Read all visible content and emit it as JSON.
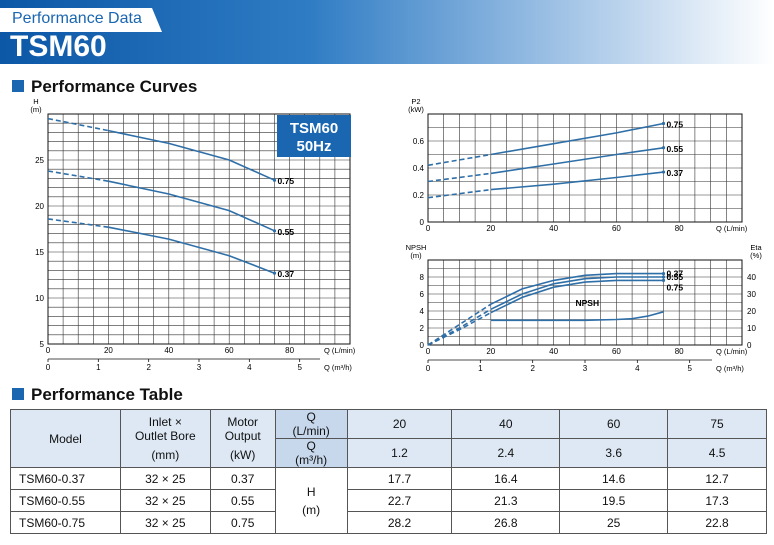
{
  "header": {
    "subtitle": "Performance Data",
    "title": "TSM60"
  },
  "section_curves": "Performance Curves",
  "section_table": "Performance Table",
  "badge": {
    "line1": "TSM60",
    "line2": "50Hz"
  },
  "colors": {
    "accent": "#1a66b0",
    "curve": "#2f6fa8",
    "table_header": "#dde8f4"
  },
  "chart_data": [
    {
      "type": "line",
      "ylabel": "H",
      "yunit": "(m)",
      "xlabel": "Q (L/min)",
      "xlabel2": "Q (m³/h)",
      "xlim": [
        0,
        100
      ],
      "ylim": [
        5,
        30
      ],
      "x_ticks": [
        0,
        20,
        40,
        60,
        80
      ],
      "x2_ticks": [
        0,
        1,
        2,
        3,
        4,
        5
      ],
      "y_ticks": [
        5,
        10,
        15,
        20,
        25
      ],
      "grid": true,
      "series": [
        {
          "name": "0.75",
          "x": [
            0,
            20,
            40,
            60,
            75
          ],
          "values": [
            29.5,
            28.2,
            26.8,
            25,
            22.8
          ]
        },
        {
          "name": "0.55",
          "x": [
            0,
            20,
            40,
            60,
            75
          ],
          "values": [
            23.8,
            22.7,
            21.3,
            19.5,
            17.3
          ]
        },
        {
          "name": "0.37",
          "x": [
            0,
            20,
            40,
            60,
            75
          ],
          "values": [
            18.6,
            17.7,
            16.4,
            14.6,
            12.7
          ]
        }
      ]
    },
    {
      "type": "line",
      "ylabel": "P2",
      "yunit": "(kW)",
      "xlabel": "Q (L/min)",
      "xlim": [
        0,
        100
      ],
      "ylim": [
        0,
        0.8
      ],
      "x_ticks": [
        0,
        20,
        40,
        60,
        80
      ],
      "y_ticks": [
        0,
        0.2,
        0.4,
        0.6
      ],
      "grid": true,
      "series": [
        {
          "name": "0.75",
          "x": [
            0,
            20,
            40,
            60,
            75
          ],
          "values": [
            0.42,
            0.5,
            0.58,
            0.66,
            0.73
          ]
        },
        {
          "name": "0.55",
          "x": [
            0,
            20,
            40,
            60,
            75
          ],
          "values": [
            0.3,
            0.36,
            0.43,
            0.5,
            0.55
          ]
        },
        {
          "name": "0.37",
          "x": [
            0,
            20,
            40,
            60,
            75
          ],
          "values": [
            0.18,
            0.24,
            0.28,
            0.33,
            0.37
          ]
        }
      ]
    },
    {
      "type": "line",
      "ylabel": "NPSH",
      "yunit": "(m)",
      "ylabel_right": "Eta",
      "yunit_right": "(%)",
      "xlabel": "Q (L/min)",
      "xlabel2": "Q (m³/h)",
      "xlim": [
        0,
        100
      ],
      "ylim": [
        0,
        10
      ],
      "ylim_right": [
        0,
        50
      ],
      "x_ticks": [
        0,
        20,
        40,
        60,
        80
      ],
      "x2_ticks": [
        0,
        1,
        2,
        3,
        4,
        5
      ],
      "y_ticks": [
        0,
        2,
        4,
        6,
        8
      ],
      "y_right_ticks": [
        0,
        10,
        20,
        30,
        40
      ],
      "grid": true,
      "series": [
        {
          "name": "0.37",
          "axis": "right",
          "x": [
            0,
            10,
            20,
            30,
            40,
            50,
            60,
            75
          ],
          "values": [
            0,
            12,
            24,
            33,
            38,
            41,
            42,
            42
          ]
        },
        {
          "name": "0.55",
          "axis": "right",
          "x": [
            0,
            10,
            20,
            30,
            40,
            50,
            60,
            75
          ],
          "values": [
            0,
            10,
            21,
            30,
            36,
            39,
            40,
            40
          ]
        },
        {
          "name": "0.75",
          "axis": "right",
          "x": [
            0,
            10,
            20,
            30,
            40,
            50,
            60,
            75
          ],
          "values": [
            0,
            9,
            19,
            28,
            34,
            37,
            38,
            38
          ]
        },
        {
          "name": "NPSH",
          "axis": "left",
          "x": [
            20,
            30,
            40,
            50,
            60,
            65,
            70,
            75
          ],
          "values": [
            2.9,
            2.9,
            2.9,
            2.9,
            3.0,
            3.1,
            3.4,
            3.9
          ]
        }
      ]
    }
  ],
  "table": {
    "headers": {
      "model": "Model",
      "inlet_l1": "Inlet ×",
      "inlet_l2": "Outlet Bore",
      "inlet_unit": "(mm)",
      "motor_l1": "Motor",
      "motor_l2": "Output",
      "motor_unit": "(kW)",
      "q_lmin": "Q",
      "q_lmin_unit": "(L/min)",
      "q_m3h": "Q",
      "q_m3h_unit": "(m³/h)",
      "h_label": "H",
      "h_unit": "(m)"
    },
    "q_lmin": [
      "20",
      "40",
      "60",
      "75"
    ],
    "q_m3h": [
      "1.2",
      "2.4",
      "3.6",
      "4.5"
    ],
    "rows": [
      {
        "model": "TSM60-0.37",
        "bore": "32 × 25",
        "output": "0.37",
        "h": [
          "17.7",
          "16.4",
          "14.6",
          "12.7"
        ]
      },
      {
        "model": "TSM60-0.55",
        "bore": "32 × 25",
        "output": "0.55",
        "h": [
          "22.7",
          "21.3",
          "19.5",
          "17.3"
        ]
      },
      {
        "model": "TSM60-0.75",
        "bore": "32 × 25",
        "output": "0.75",
        "h": [
          "28.2",
          "26.8",
          "25",
          "22.8"
        ]
      }
    ]
  }
}
